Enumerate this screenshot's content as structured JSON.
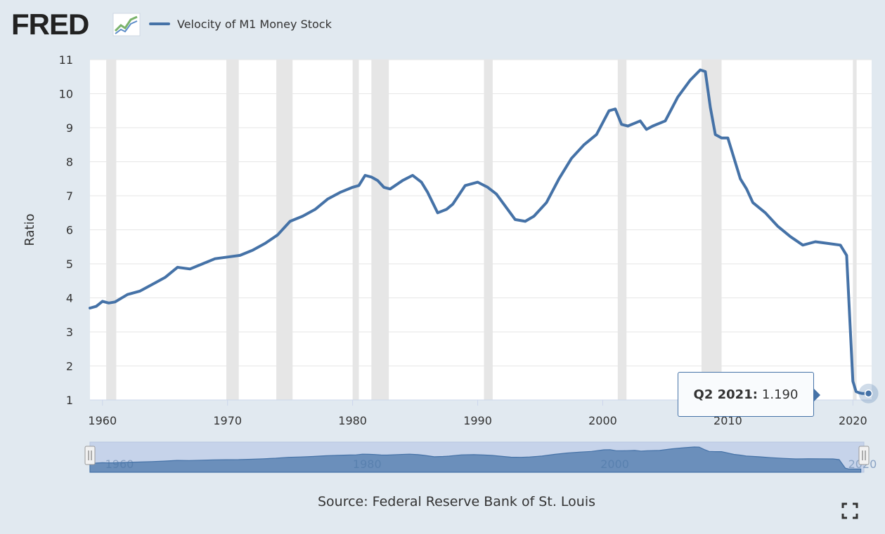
{
  "header": {
    "logo_text": "FRED",
    "legend_label": "Velocity of M1 Money Stock",
    "series_color": "#4572a7"
  },
  "tooltip": {
    "label": "Q2 2021:",
    "value": "1.190"
  },
  "source": "Source: Federal Reserve Bank of St. Louis",
  "navigator": {
    "tick_labels": [
      "1960",
      "1980",
      "2000",
      "2020"
    ]
  },
  "chart_data": {
    "type": "line",
    "title": "Velocity of M1 Money Stock",
    "xlabel": "",
    "ylabel": "Ratio",
    "ylim": [
      1,
      11
    ],
    "xlim": [
      1959.0,
      2021.5
    ],
    "yticks": [
      "1",
      "2",
      "3",
      "4",
      "5",
      "6",
      "7",
      "8",
      "9",
      "10",
      "11"
    ],
    "xticks": [
      "1960",
      "1970",
      "1980",
      "1990",
      "2000",
      "2010",
      "2020"
    ],
    "recessions": [
      [
        1960.3,
        1961.1
      ],
      [
        1969.9,
        1970.9
      ],
      [
        1973.9,
        1975.2
      ],
      [
        1980.0,
        1980.5
      ],
      [
        1981.5,
        1982.9
      ],
      [
        1990.5,
        1991.2
      ],
      [
        2001.2,
        2001.9
      ],
      [
        2007.9,
        2009.5
      ],
      [
        2020.0,
        2020.3
      ]
    ],
    "series": [
      {
        "name": "Velocity of M1 Money Stock",
        "x": [
          1959.0,
          1959.5,
          1960.0,
          1960.5,
          1961.0,
          1962.0,
          1963.0,
          1964.0,
          1965.0,
          1966.0,
          1967.0,
          1968.0,
          1969.0,
          1970.0,
          1971.0,
          1972.0,
          1973.0,
          1974.0,
          1975.0,
          1976.0,
          1977.0,
          1978.0,
          1979.0,
          1980.0,
          1980.5,
          1981.0,
          1981.5,
          1982.0,
          1982.5,
          1983.0,
          1984.0,
          1984.8,
          1985.5,
          1986.0,
          1986.8,
          1987.5,
          1988.0,
          1989.0,
          1990.0,
          1990.8,
          1991.5,
          1992.0,
          1993.0,
          1993.8,
          1994.5,
          1995.5,
          1996.5,
          1997.5,
          1998.5,
          1999.5,
          2000.5,
          2001.0,
          2001.5,
          2002.0,
          2003.0,
          2003.5,
          2004.0,
          2005.0,
          2006.0,
          2007.0,
          2007.8,
          2008.2,
          2008.6,
          2009.0,
          2009.5,
          2010.0,
          2011.0,
          2011.5,
          2012.0,
          2013.0,
          2014.0,
          2015.0,
          2016.0,
          2017.0,
          2018.0,
          2019.0,
          2019.5,
          2020.0,
          2020.25,
          2020.5,
          2020.75,
          2021.0,
          2021.25
        ],
        "values": [
          3.7,
          3.75,
          3.9,
          3.85,
          3.88,
          4.1,
          4.2,
          4.4,
          4.6,
          4.9,
          4.85,
          5.0,
          5.15,
          5.2,
          5.25,
          5.4,
          5.6,
          5.85,
          6.25,
          6.4,
          6.6,
          6.9,
          7.1,
          7.25,
          7.3,
          7.6,
          7.55,
          7.45,
          7.25,
          7.2,
          7.45,
          7.6,
          7.4,
          7.1,
          6.5,
          6.6,
          6.75,
          7.3,
          7.4,
          7.25,
          7.05,
          6.8,
          6.3,
          6.25,
          6.4,
          6.8,
          7.5,
          8.1,
          8.5,
          8.8,
          9.5,
          9.55,
          9.1,
          9.05,
          9.2,
          8.95,
          9.05,
          9.2,
          9.9,
          10.4,
          10.7,
          10.65,
          9.6,
          8.8,
          8.7,
          8.7,
          7.5,
          7.2,
          6.8,
          6.5,
          6.1,
          5.8,
          5.55,
          5.65,
          5.6,
          5.55,
          5.25,
          1.55,
          1.25,
          1.21,
          1.19,
          1.19,
          1.19
        ]
      }
    ]
  }
}
